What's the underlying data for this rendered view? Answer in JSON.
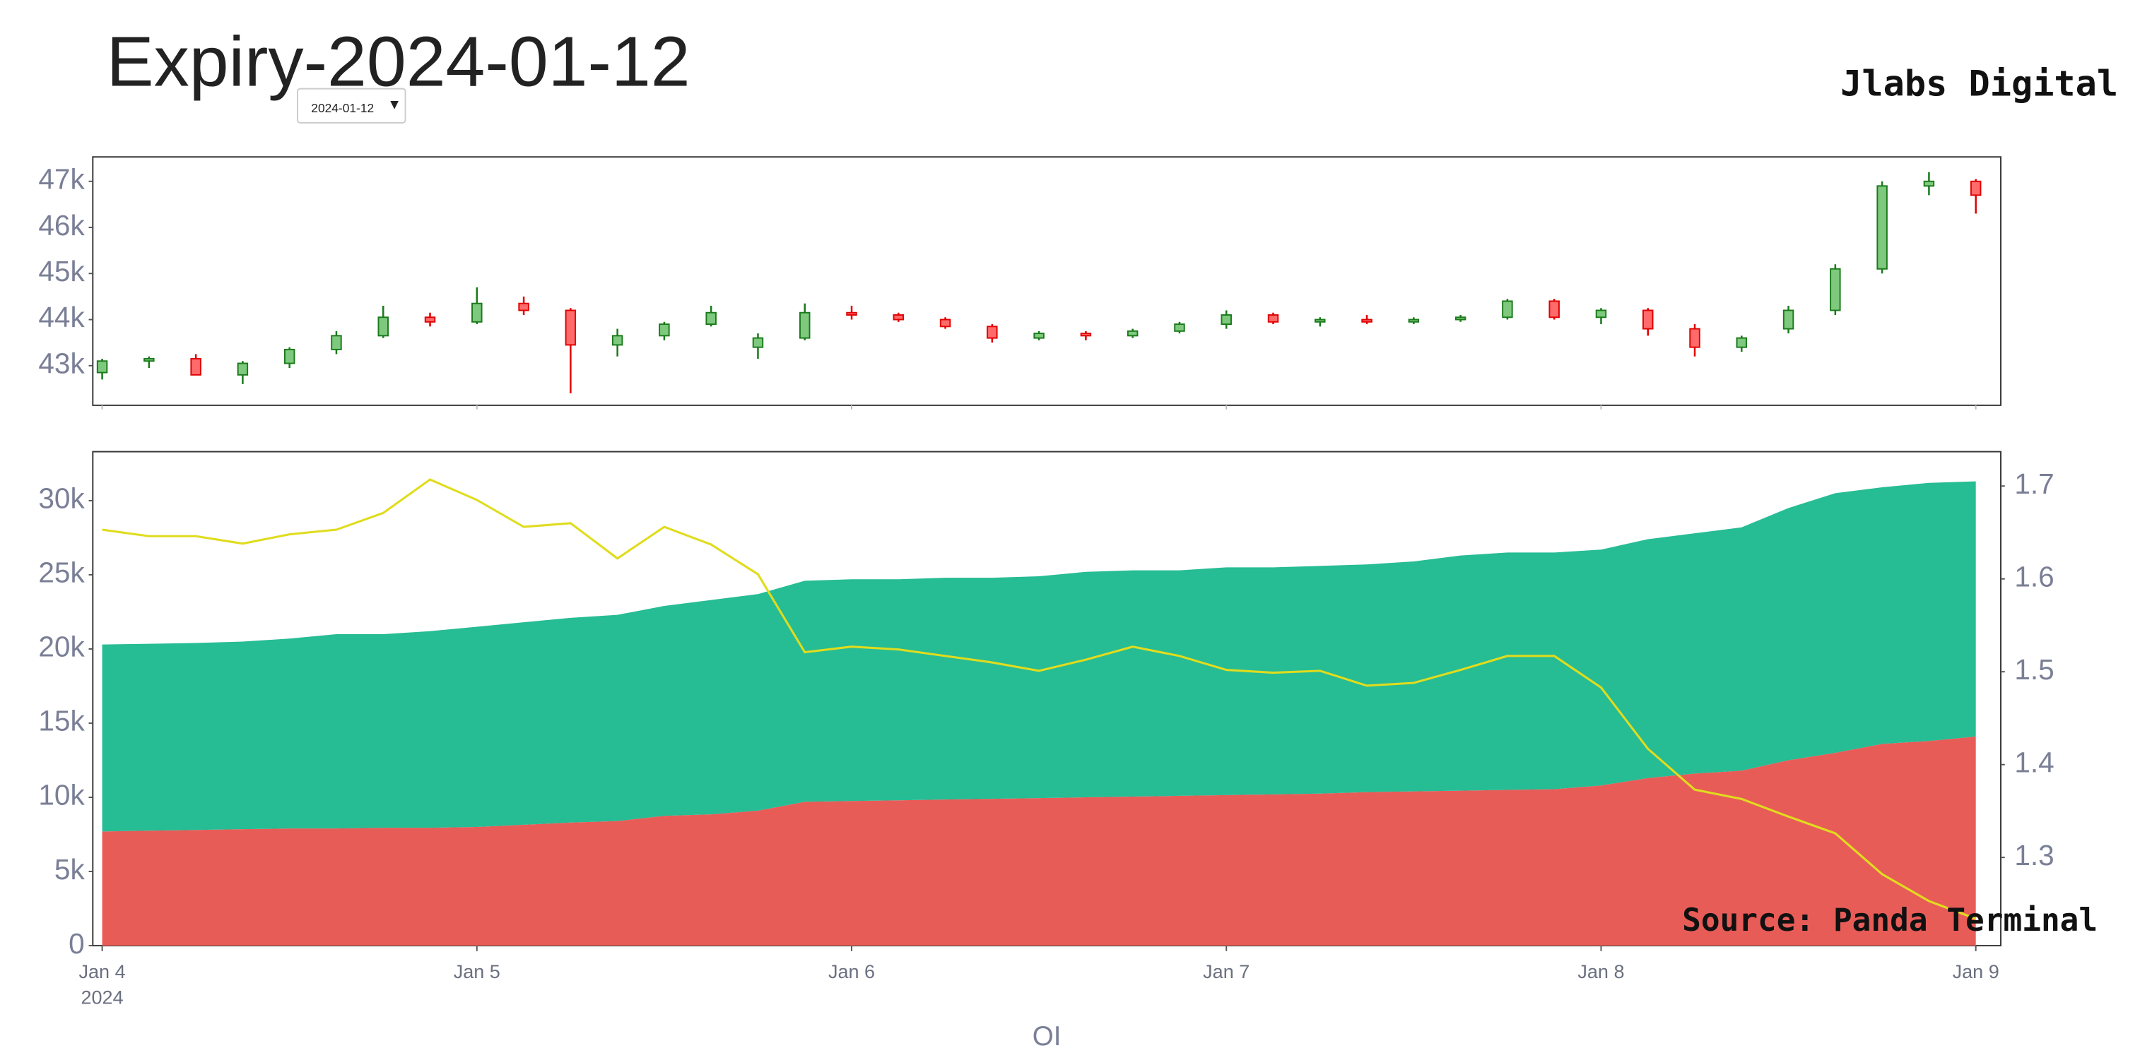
{
  "header": {
    "title": "Expiry-2024-01-12",
    "dropdown": "2024-01-12",
    "brand": "Jlabs Digital"
  },
  "chart_data": [
    {
      "type": "candlestick",
      "x": [
        "2024-01-04 00:00",
        "2024-01-04 03:00",
        "2024-01-04 06:00",
        "2024-01-04 09:00",
        "2024-01-04 12:00",
        "2024-01-04 15:00",
        "2024-01-04 18:00",
        "2024-01-04 21:00",
        "2024-01-05 00:00",
        "2024-01-05 03:00",
        "2024-01-05 06:00",
        "2024-01-05 09:00",
        "2024-01-05 12:00",
        "2024-01-05 15:00",
        "2024-01-05 18:00",
        "2024-01-05 21:00",
        "2024-01-06 00:00",
        "2024-01-06 03:00",
        "2024-01-06 06:00",
        "2024-01-06 09:00",
        "2024-01-06 12:00",
        "2024-01-06 15:00",
        "2024-01-06 18:00",
        "2024-01-06 21:00",
        "2024-01-07 00:00",
        "2024-01-07 03:00",
        "2024-01-07 06:00",
        "2024-01-07 09:00",
        "2024-01-07 12:00",
        "2024-01-07 15:00",
        "2024-01-07 18:00",
        "2024-01-07 21:00",
        "2024-01-08 00:00",
        "2024-01-08 03:00",
        "2024-01-08 06:00",
        "2024-01-08 09:00",
        "2024-01-08 12:00",
        "2024-01-08 15:00",
        "2024-01-08 18:00",
        "2024-01-08 21:00",
        "2024-01-09 00:00"
      ],
      "open": [
        42850,
        43100,
        43150,
        42800,
        43050,
        43350,
        43650,
        44050,
        43950,
        44350,
        44200,
        43450,
        43650,
        43900,
        43400,
        43600,
        44150,
        44100,
        44000,
        43850,
        43600,
        43700,
        43650,
        43750,
        43900,
        44100,
        43950,
        44000,
        43950,
        44000,
        44050,
        44400,
        44050,
        44200,
        43800,
        43400,
        43800,
        44200,
        45100,
        46900,
        47000
      ],
      "high": [
        43150,
        43200,
        43250,
        43100,
        43400,
        43750,
        44300,
        44150,
        44700,
        44500,
        44250,
        43800,
        43950,
        44300,
        43700,
        44350,
        44300,
        44150,
        44050,
        43900,
        43750,
        43750,
        43800,
        43950,
        44200,
        44150,
        44050,
        44100,
        44050,
        44100,
        44450,
        44450,
        44250,
        44250,
        43900,
        43650,
        44300,
        45200,
        47000,
        47200,
        47050
      ],
      "low": [
        42700,
        42950,
        42850,
        42600,
        42950,
        43250,
        43600,
        43850,
        43900,
        44100,
        42400,
        43200,
        43550,
        43850,
        43150,
        43550,
        44000,
        43950,
        43800,
        43500,
        43550,
        43550,
        43600,
        43700,
        43800,
        43900,
        43850,
        43900,
        43900,
        43950,
        44000,
        44000,
        43900,
        43650,
        43200,
        43300,
        43700,
        44100,
        45000,
        46700,
        46300
      ],
      "close": [
        43100,
        43150,
        42800,
        43050,
        43350,
        43650,
        44050,
        43950,
        44350,
        44200,
        43450,
        43650,
        43900,
        44150,
        43600,
        44150,
        44100,
        44000,
        43850,
        43600,
        43700,
        43650,
        43750,
        43900,
        44100,
        43950,
        44000,
        43950,
        44000,
        44050,
        44400,
        44050,
        44200,
        43800,
        43400,
        43600,
        44200,
        45100,
        46900,
        47000,
        46700
      ],
      "up_color": "#7fc97f",
      "down_color": "#ff6b6b",
      "up_line": "#1a7a1a",
      "down_line": "#e00000",
      "xlim": [
        "2024-01-03 23:24",
        "2024-01-09 01:36"
      ],
      "ylim": [
        42140,
        47530
      ],
      "yticks": [
        {
          "value": 43000,
          "label": "43k"
        },
        {
          "value": 44000,
          "label": "44k"
        },
        {
          "value": 45000,
          "label": "45k"
        },
        {
          "value": 46000,
          "label": "46k"
        },
        {
          "value": 47000,
          "label": "47k"
        }
      ]
    },
    {
      "type": "area",
      "stacked": true,
      "x": [
        "2024-01-04 00:00",
        "2024-01-04 03:00",
        "2024-01-04 06:00",
        "2024-01-04 09:00",
        "2024-01-04 12:00",
        "2024-01-04 15:00",
        "2024-01-04 18:00",
        "2024-01-04 21:00",
        "2024-01-05 00:00",
        "2024-01-05 03:00",
        "2024-01-05 06:00",
        "2024-01-05 09:00",
        "2024-01-05 12:00",
        "2024-01-05 15:00",
        "2024-01-05 18:00",
        "2024-01-05 21:00",
        "2024-01-06 00:00",
        "2024-01-06 03:00",
        "2024-01-06 06:00",
        "2024-01-06 09:00",
        "2024-01-06 12:00",
        "2024-01-06 15:00",
        "2024-01-06 18:00",
        "2024-01-06 21:00",
        "2024-01-07 00:00",
        "2024-01-07 03:00",
        "2024-01-07 06:00",
        "2024-01-07 09:00",
        "2024-01-07 12:00",
        "2024-01-07 15:00",
        "2024-01-07 18:00",
        "2024-01-07 21:00",
        "2024-01-08 00:00",
        "2024-01-08 03:00",
        "2024-01-08 06:00",
        "2024-01-08 09:00",
        "2024-01-08 12:00",
        "2024-01-08 15:00",
        "2024-01-08 18:00",
        "2024-01-08 21:00",
        "2024-01-09 00:00"
      ],
      "series": [
        {
          "color": "#e85c58",
          "values": [
            7700,
            7750,
            7800,
            7850,
            7900,
            7900,
            7950,
            7950,
            8000,
            8150,
            8300,
            8400,
            8750,
            8850,
            9100,
            9700,
            9750,
            9800,
            9850,
            9900,
            9950,
            10000,
            10050,
            10100,
            10150,
            10200,
            10250,
            10350,
            10400,
            10450,
            10500,
            10550,
            10800,
            11300,
            11600,
            11800,
            12500,
            13000,
            13600,
            13800,
            14100
          ]
        },
        {
          "color": "#26bc94",
          "values": [
            12600,
            12600,
            12600,
            12650,
            12800,
            13100,
            13050,
            13250,
            13500,
            13650,
            13800,
            13900,
            14150,
            14450,
            14600,
            14900,
            14950,
            14900,
            14950,
            14900,
            14950,
            15200,
            15250,
            15200,
            15350,
            15300,
            15350,
            15350,
            15500,
            15850,
            16000,
            15950,
            15900,
            16100,
            16200,
            16400,
            17000,
            17500,
            17300,
            17400,
            17200
          ]
        },
        {
          "color": "#e0dc1e",
          "axis": "y2",
          "values": [
            1.653,
            1.646,
            1.646,
            1.638,
            1.648,
            1.653,
            1.671,
            1.707,
            1.685,
            1.656,
            1.66,
            1.622,
            1.656,
            1.637,
            1.605,
            1.521,
            1.527,
            1.524,
            1.517,
            1.51,
            1.501,
            1.513,
            1.527,
            1.517,
            1.502,
            1.499,
            1.501,
            1.485,
            1.488,
            1.502,
            1.517,
            1.517,
            1.483,
            1.417,
            1.373,
            1.363,
            1.344,
            1.326,
            1.282,
            1.253,
            1.234
          ]
        }
      ],
      "xlim": [
        "2024-01-03 23:24",
        "2024-01-09 01:36"
      ],
      "xticks": [
        {
          "value": "2024-01-04 00:00",
          "label": "Jan 4"
        },
        {
          "value": "2024-01-05 00:00",
          "label": "Jan 5"
        },
        {
          "value": "2024-01-06 00:00",
          "label": "Jan 6"
        },
        {
          "value": "2024-01-07 00:00",
          "label": "Jan 7"
        },
        {
          "value": "2024-01-08 00:00",
          "label": "Jan 8"
        },
        {
          "value": "2024-01-09 00:00",
          "label": "Jan 9"
        }
      ],
      "x_year_label": "2024",
      "xlabel": "OI",
      "ylim": [
        0,
        33300
      ],
      "yticks": [
        0,
        {
          "value": 5000,
          "label": "5k"
        },
        {
          "value": 10000,
          "label": "10k"
        },
        {
          "value": 15000,
          "label": "15k"
        },
        {
          "value": 20000,
          "label": "20k"
        },
        {
          "value": 25000,
          "label": "25k"
        },
        {
          "value": 30000,
          "label": "30k"
        }
      ],
      "y2lim": [
        1.205,
        1.737
      ],
      "y2ticks": [
        1.3,
        1.4,
        1.5,
        1.6,
        1.7
      ],
      "annotation": "Source: Panda Terminal"
    }
  ]
}
